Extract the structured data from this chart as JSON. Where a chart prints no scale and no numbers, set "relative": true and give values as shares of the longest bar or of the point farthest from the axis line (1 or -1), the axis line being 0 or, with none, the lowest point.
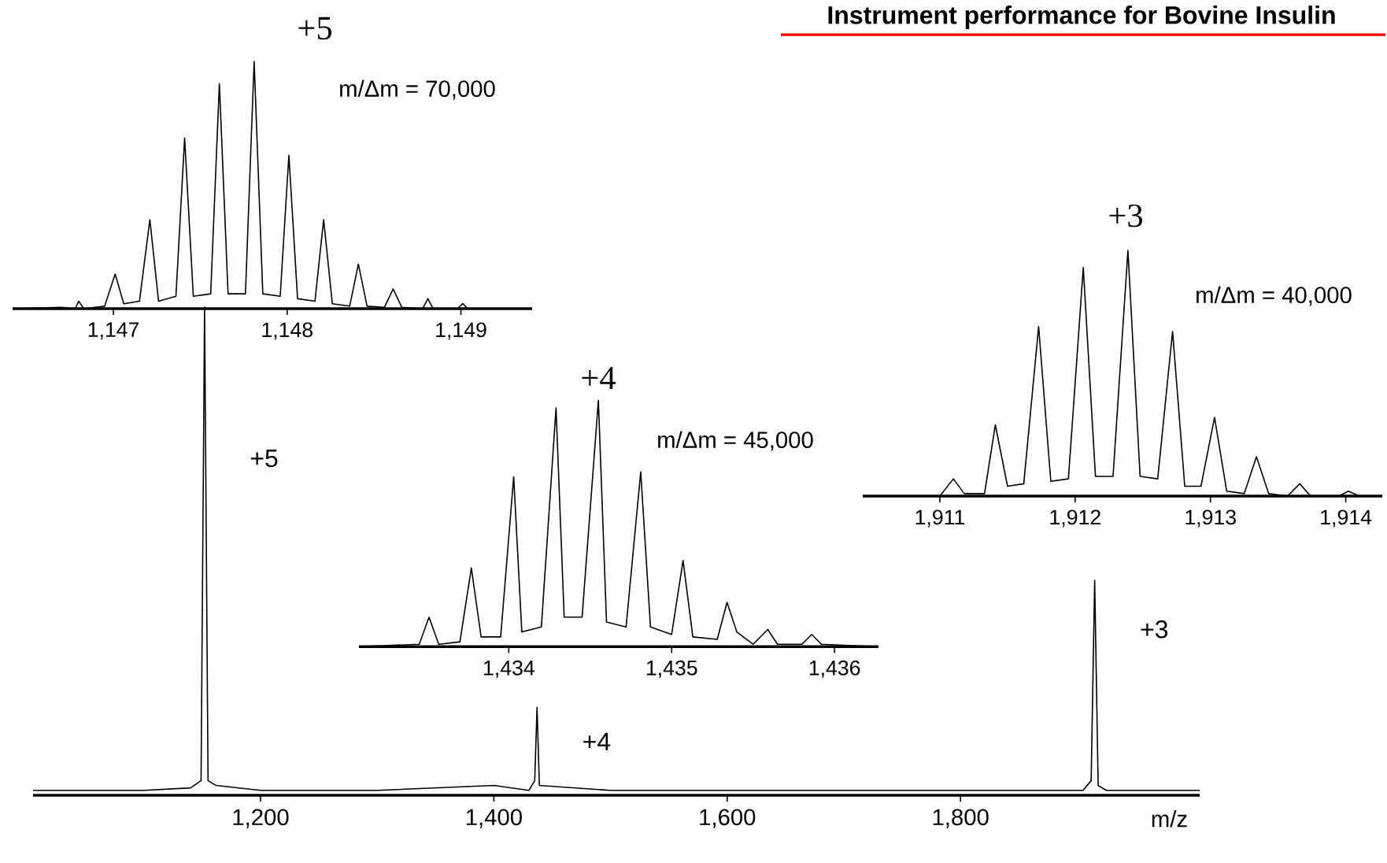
{
  "chart_data": [
    {
      "type": "line",
      "xlabel": "m/z",
      "relative": true,
      "xlim": [
        1005,
        2005
      ],
      "xticks": [
        {
          "value": 1200,
          "label": "1,200"
        },
        {
          "value": 1400,
          "label": "1,400"
        },
        {
          "value": 1600,
          "label": "1,600"
        },
        {
          "value": 1800,
          "label": "1,800"
        }
      ],
      "series": [
        {
          "color": "#000000",
          "x": [
            1005,
            1100,
            1140,
            1149,
            1152,
            1155,
            1162,
            1200,
            1300,
            1400,
            1430,
            1435,
            1437,
            1439,
            1500,
            1600,
            1700,
            1800,
            1905,
            1912,
            1915,
            1918,
            1925,
            2005
          ],
          "values": [
            0.01,
            0.01,
            0.015,
            0.03,
            1,
            0.03,
            0.02,
            0.01,
            0.01,
            0.02,
            0.01,
            0.03,
            0.18,
            0.02,
            0.01,
            0.01,
            0.01,
            0.01,
            0.01,
            0.03,
            0.44,
            0.02,
            0.01,
            0.01
          ]
        }
      ],
      "annotations": [
        {
          "text": "+5",
          "x": 1152,
          "y": 0.69
        },
        {
          "text": "+4",
          "x": 1437,
          "y": 0.11
        },
        {
          "text": "+3",
          "x": 1915,
          "y": 0.34
        }
      ]
    },
    {
      "type": "line",
      "title": "+5",
      "relative": true,
      "xlim": [
        1146.42,
        1149.41
      ],
      "xticks": [
        {
          "value": 1147,
          "label": "1,147"
        },
        {
          "value": 1148,
          "label": "1,148"
        },
        {
          "value": 1149,
          "label": "1,149"
        }
      ],
      "series": [
        {
          "color": "#000000",
          "x": [
            1146.42,
            1146.7,
            1146.78,
            1146.8,
            1146.83,
            1146.95,
            1147.01,
            1147.06,
            1147.15,
            1147.21,
            1147.26,
            1147.36,
            1147.41,
            1147.46,
            1147.56,
            1147.61,
            1147.66,
            1147.76,
            1147.81,
            1147.86,
            1147.96,
            1148.01,
            1148.06,
            1148.16,
            1148.21,
            1148.26,
            1148.36,
            1148.41,
            1148.46,
            1148.56,
            1148.61,
            1148.66,
            1148.78,
            1148.81,
            1148.84,
            1148.98,
            1149.01,
            1149.04,
            1149.41
          ],
          "values": [
            0,
            0.005,
            0,
            0.03,
            0,
            0.01,
            0.14,
            0.02,
            0.03,
            0.36,
            0.03,
            0.05,
            0.69,
            0.05,
            0.06,
            0.91,
            0.06,
            0.06,
            1,
            0.06,
            0.05,
            0.62,
            0.04,
            0.03,
            0.36,
            0.02,
            0.01,
            0.18,
            0.01,
            0.005,
            0.08,
            0.005,
            0,
            0.04,
            0,
            0,
            0.02,
            0,
            0
          ]
        }
      ],
      "annotations": [
        "m/Δm = 70,000"
      ]
    },
    {
      "type": "line",
      "title": "+4",
      "relative": true,
      "xlim": [
        1433.08,
        1436.27
      ],
      "xticks": [
        {
          "value": 1434,
          "label": "1,434"
        },
        {
          "value": 1435,
          "label": "1,435"
        },
        {
          "value": 1436,
          "label": "1,436"
        }
      ],
      "series": [
        {
          "color": "#000000",
          "x": [
            1433.08,
            1433.45,
            1433.51,
            1433.57,
            1433.7,
            1433.77,
            1433.83,
            1433.95,
            1434.03,
            1434.08,
            1434.2,
            1434.29,
            1434.34,
            1434.45,
            1434.55,
            1434.6,
            1434.72,
            1434.81,
            1434.87,
            1435.0,
            1435.07,
            1435.13,
            1435.28,
            1435.34,
            1435.4,
            1435.5,
            1435.59,
            1435.65,
            1435.8,
            1435.86,
            1435.92,
            1436.27
          ],
          "values": [
            0,
            0.01,
            0.12,
            0.01,
            0.02,
            0.32,
            0.04,
            0.04,
            0.69,
            0.06,
            0.08,
            0.97,
            0.12,
            0.12,
            1,
            0.1,
            0.08,
            0.71,
            0.08,
            0.05,
            0.35,
            0.04,
            0.03,
            0.18,
            0.06,
            0.01,
            0.07,
            0.01,
            0.01,
            0.05,
            0.01,
            0
          ]
        }
      ],
      "annotations": [
        "m/Δm = 45,000"
      ]
    },
    {
      "type": "line",
      "title": "+3",
      "relative": true,
      "xlim": [
        1910.43,
        1914.27
      ],
      "xticks": [
        {
          "value": 1911,
          "label": "1,911"
        },
        {
          "value": 1912,
          "label": "1,912"
        },
        {
          "value": 1913,
          "label": "1,913"
        },
        {
          "value": 1914,
          "label": "1,914"
        }
      ],
      "series": [
        {
          "color": "#000000",
          "x": [
            1910.43,
            1911.0,
            1911.1,
            1911.18,
            1911.33,
            1911.41,
            1911.5,
            1911.62,
            1911.73,
            1911.82,
            1911.95,
            1912.06,
            1912.15,
            1912.28,
            1912.39,
            1912.48,
            1912.61,
            1912.72,
            1912.81,
            1912.93,
            1913.03,
            1913.12,
            1913.25,
            1913.34,
            1913.43,
            1913.57,
            1913.66,
            1913.74,
            1913.95,
            1914.02,
            1914.1,
            1914.27
          ],
          "values": [
            0,
            0,
            0.07,
            0.01,
            0.01,
            0.29,
            0.04,
            0.05,
            0.69,
            0.06,
            0.07,
            0.93,
            0.08,
            0.08,
            1,
            0.08,
            0.07,
            0.67,
            0.04,
            0.04,
            0.32,
            0.02,
            0.01,
            0.16,
            0.01,
            0,
            0.05,
            0,
            0,
            0.02,
            0,
            0
          ]
        }
      ],
      "annotations": [
        "Instrument performance for Bovine Insulin",
        "m/Δm = 40,000"
      ]
    }
  ]
}
